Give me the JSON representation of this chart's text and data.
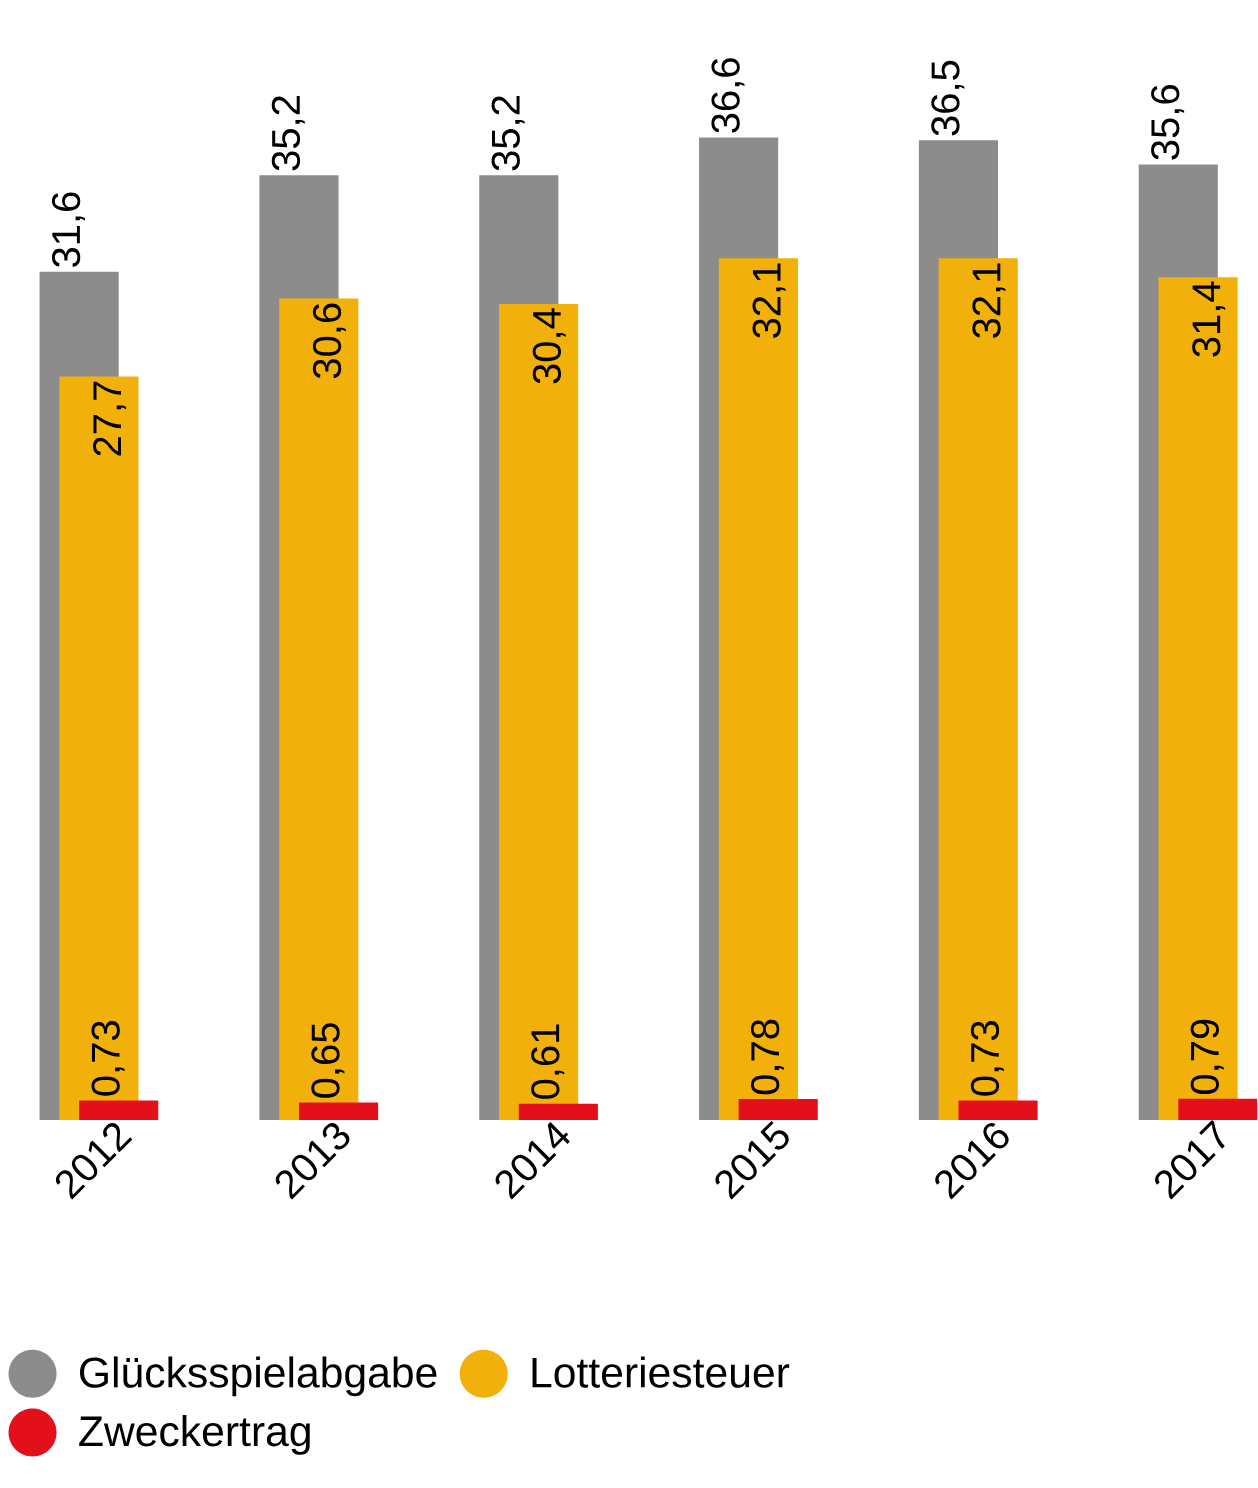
{
  "chart_data": {
    "type": "bar",
    "categories": [
      "2012",
      "2013",
      "2014",
      "2015",
      "2016",
      "2017"
    ],
    "series": [
      {
        "name": "Glücksspielabgabe",
        "color": "#8c8c8c",
        "values": [
          31.6,
          35.2,
          35.2,
          36.6,
          36.5,
          35.6
        ],
        "value_labels": [
          "31,6",
          "35,2",
          "35,2",
          "36,6",
          "36,5",
          "35,6"
        ]
      },
      {
        "name": "Lotteriesteuer",
        "color": "#f2b10a",
        "values": [
          27.7,
          30.6,
          30.4,
          32.1,
          32.1,
          31.4
        ],
        "value_labels": [
          "27,7",
          "30,6",
          "30,4",
          "32,1",
          "32,1",
          "31,4"
        ]
      },
      {
        "name": "Zweckertrag",
        "color": "#e3101b",
        "values": [
          0.73,
          0.65,
          0.61,
          0.78,
          0.73,
          0.79
        ],
        "value_labels": [
          "0,73",
          "0,65",
          "0,61",
          "0,78",
          "0,73",
          "0,79"
        ]
      }
    ],
    "legend": "bottom"
  }
}
